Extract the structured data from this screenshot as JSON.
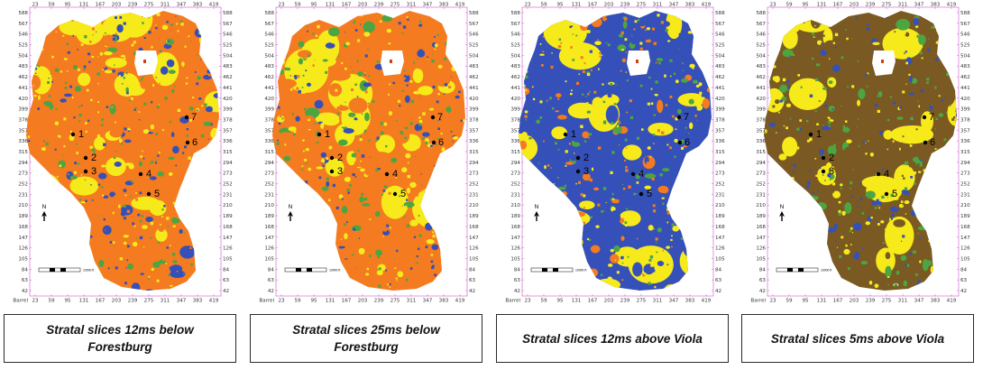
{
  "colors": {
    "background": "#ffffff",
    "frame": "#cc55cc",
    "orange": "#f47b20",
    "yellow": "#f7ea1a",
    "blue": "#3550b8",
    "green": "#4da541",
    "brown": "#7a5a22"
  },
  "axes": {
    "x_ticks": [
      "23",
      "59",
      "95",
      "131",
      "167",
      "203",
      "239",
      "275",
      "311",
      "347",
      "383",
      "419"
    ],
    "y_ticks": [
      "588",
      "567",
      "546",
      "525",
      "504",
      "483",
      "462",
      "441",
      "420",
      "399",
      "378",
      "357",
      "336",
      "315",
      "294",
      "273",
      "252",
      "231",
      "210",
      "189",
      "168",
      "147",
      "126",
      "105",
      "84",
      "63",
      "42"
    ],
    "x_axis_label": "Barrel",
    "north_label": "N",
    "scale_label": "10000 ft"
  },
  "well_points": [
    "1",
    "2",
    "3",
    "4",
    "5",
    "6",
    "7"
  ],
  "panels": [
    {
      "caption": "Stratal slices 12ms below Forestburg",
      "dominant": "orange",
      "secondary": "yellow",
      "accent1": "blue",
      "accent2": "green"
    },
    {
      "caption": "Stratal slices 25ms below Forestburg",
      "dominant": "orange",
      "secondary": "yellow",
      "accent1": "green",
      "accent2": "blue"
    },
    {
      "caption": "Stratal slices 12ms above Viola",
      "dominant": "blue",
      "secondary": "yellow",
      "accent1": "orange",
      "accent2": "green"
    },
    {
      "caption": "Stratal slices 5ms above Viola",
      "dominant": "brown",
      "secondary": "yellow",
      "accent1": "green",
      "accent2": "blue"
    }
  ]
}
